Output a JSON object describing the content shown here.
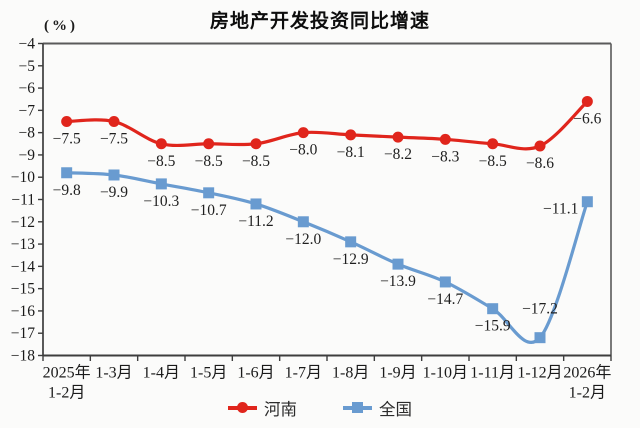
{
  "title": "房地产开发投资同比增速",
  "y_axis_unit": "(%)",
  "legend": {
    "items": [
      {
        "label": "河南",
        "marker": "circle-on-line-icon"
      },
      {
        "label": "全国",
        "marker": "square-on-line-icon"
      }
    ]
  },
  "colors": {
    "henan_red": "#e0251c",
    "national_blue": "#699bd0",
    "axis_dark": "#3d3d3d",
    "frame_gray": "#5a5a5a",
    "tick_text": "#1a1a1a",
    "label_text": "#1f1f1f",
    "background": "#fbfbfa"
  },
  "chart_data": {
    "type": "line",
    "smooth": true,
    "grid": false,
    "legend_position": "bottom",
    "title": "房地产开发投资同比增速",
    "ylabel": "(%)",
    "xlabel": "",
    "ylim": [
      -18,
      -4
    ],
    "y_tick_step": 1,
    "categories": [
      "2025年\n1-2月",
      "1-3月",
      "1-4月",
      "1-5月",
      "1-6月",
      "1-7月",
      "1-8月",
      "1-9月",
      "1-10月",
      "1-11月",
      "1-12月",
      "2026年\n1-2月"
    ],
    "series": [
      {
        "name": "河南",
        "color": "#e0251c",
        "marker": "circle",
        "values": [
          -7.5,
          -7.5,
          -8.5,
          -8.5,
          -8.5,
          -8.0,
          -8.1,
          -8.2,
          -8.3,
          -8.5,
          -8.6,
          -6.6
        ],
        "label_pos": [
          "b",
          "b",
          "b",
          "b",
          "b",
          "b",
          "b",
          "b",
          "b",
          "b",
          "b",
          "b"
        ]
      },
      {
        "name": "全国",
        "color": "#699bd0",
        "marker": "square",
        "values": [
          -9.8,
          -9.9,
          -10.3,
          -10.7,
          -11.2,
          -12.0,
          -12.9,
          -13.9,
          -14.7,
          -15.9,
          -17.2,
          -11.1
        ],
        "label_pos": [
          "b",
          "b",
          "b",
          "b",
          "b",
          "b",
          "b",
          "b",
          "b",
          "b",
          "a",
          "l"
        ]
      }
    ]
  }
}
